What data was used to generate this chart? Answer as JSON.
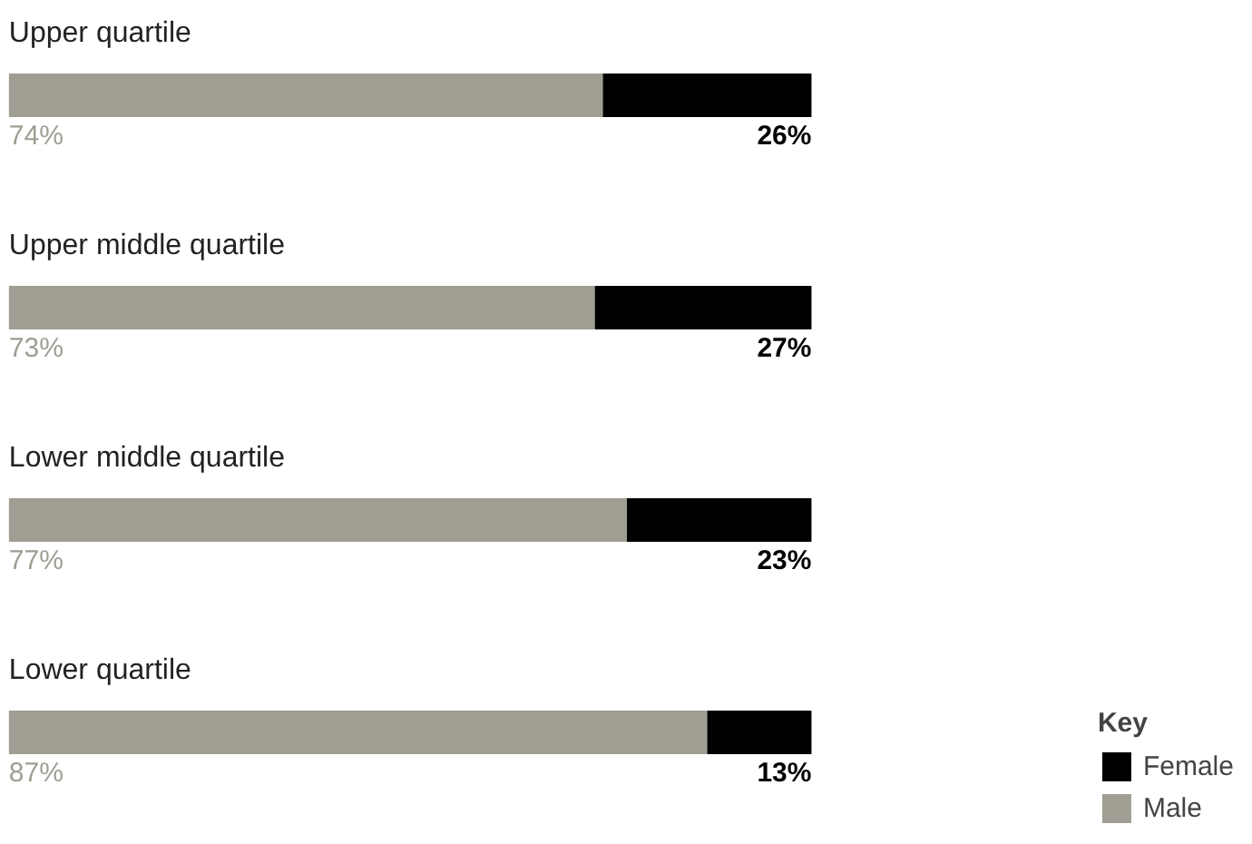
{
  "chart_data": {
    "type": "bar",
    "orientation": "horizontal",
    "stacked": true,
    "categories": [
      "Upper quartile",
      "Upper middle quartile",
      "Lower middle quartile",
      "Lower quartile"
    ],
    "series": [
      {
        "name": "Male",
        "color": "#a09d93",
        "values": [
          74,
          73,
          77,
          87
        ],
        "value_labels": [
          "74%",
          "73%",
          "77%",
          "87%"
        ]
      },
      {
        "name": "Female",
        "color": "#000000",
        "values": [
          26,
          27,
          23,
          13
        ],
        "value_labels": [
          "26%",
          "27%",
          "23%",
          "13%"
        ]
      }
    ],
    "legend_title": "Key",
    "legend": "bottom right",
    "tick_labels": false,
    "grid": false
  }
}
